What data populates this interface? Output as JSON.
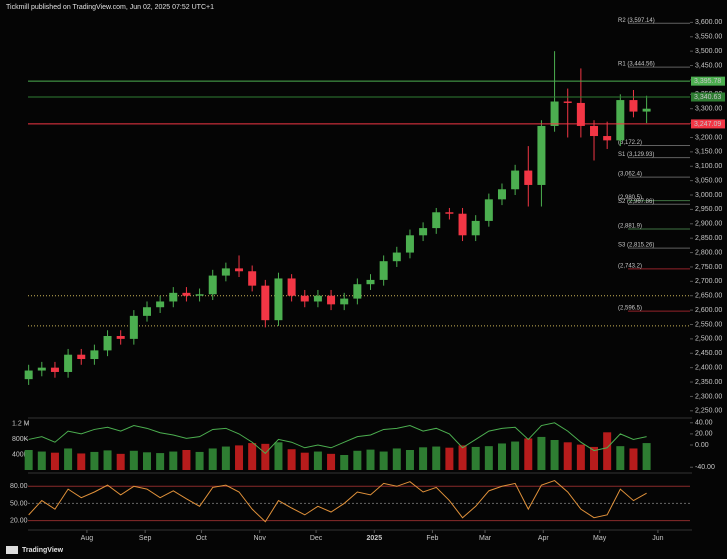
{
  "chart_data": {
    "type": "candlestick",
    "title": "Tickmill published on TradingView.com, Jun 02, 2025 07:52 UTC+1",
    "footer": "TradingView",
    "xlim": [
      -0.05,
      50.3
    ],
    "xticks": [
      {
        "value": 4.43,
        "label": "Aug"
      },
      {
        "value": 8.86,
        "label": "Sep"
      },
      {
        "value": 13.14,
        "label": "Oct"
      },
      {
        "value": 17.57,
        "label": "Nov"
      },
      {
        "value": 21.86,
        "label": "Dec"
      },
      {
        "value": 26.29,
        "label": "2025"
      },
      {
        "value": 30.71,
        "label": "Feb"
      },
      {
        "value": 34.71,
        "label": "Mar"
      },
      {
        "value": 39.14,
        "label": "Apr"
      },
      {
        "value": 43.43,
        "label": "May"
      },
      {
        "value": 47.86,
        "label": "Jun"
      }
    ],
    "ylim": [
      2225,
      3650
    ],
    "yticks": [
      {
        "value": 2250,
        "label": "2,250.00"
      },
      {
        "value": 2300,
        "label": "2,300.00"
      },
      {
        "value": 2350,
        "label": "2,350.00"
      },
      {
        "value": 2400,
        "label": "2,400.00"
      },
      {
        "value": 2450,
        "label": "2,450.00"
      },
      {
        "value": 2500,
        "label": "2,500.00"
      },
      {
        "value": 2550,
        "label": "2,550.00"
      },
      {
        "value": 2600,
        "label": "2,600.00"
      },
      {
        "value": 2650,
        "label": "2,650.00"
      },
      {
        "value": 2700,
        "label": "2,700.00"
      },
      {
        "value": 2750,
        "label": "2,750.00"
      },
      {
        "value": 2800,
        "label": "2,800.00"
      },
      {
        "value": 2850,
        "label": "2,850.00"
      },
      {
        "value": 2900,
        "label": "2,900.00"
      },
      {
        "value": 2950,
        "label": "2,950.00"
      },
      {
        "value": 3000,
        "label": "3,000.00"
      },
      {
        "value": 3050,
        "label": "3,050.00"
      },
      {
        "value": 3100,
        "label": "3,100.00"
      },
      {
        "value": 3150,
        "label": "3,150.00"
      },
      {
        "value": 3200,
        "label": "3,200.00"
      },
      {
        "value": 3250,
        "label": "3,250.00"
      },
      {
        "value": 3300,
        "label": "3,300.00"
      },
      {
        "value": 3350,
        "label": "3,350.00"
      },
      {
        "value": 3400,
        "label": "3,400.00"
      },
      {
        "value": 3450,
        "label": "3,450.00"
      },
      {
        "value": 3500,
        "label": "3,500.00"
      },
      {
        "value": 3550,
        "label": "3,550.00"
      },
      {
        "value": 3600,
        "label": "3,600.00"
      }
    ],
    "up_color": "#4caf50",
    "down_color": "#f23645",
    "open": [
      2360,
      2390,
      2400,
      2385,
      2445,
      2430,
      2460,
      2510,
      2500,
      2580,
      2610,
      2630,
      2660,
      2650,
      2655,
      2720,
      2745,
      2735,
      2685,
      2565,
      2710,
      2650,
      2630,
      2650,
      2620,
      2640,
      2690,
      2705,
      2770,
      2800,
      2860,
      2885,
      2940,
      2935,
      2860,
      2910,
      2985,
      3020,
      3085,
      3035,
      3240,
      3325,
      3320,
      3240,
      3205,
      3190,
      3330,
      3290
    ],
    "high": [
      2410,
      2420,
      2420,
      2465,
      2465,
      2480,
      2530,
      2530,
      2600,
      2630,
      2650,
      2680,
      2680,
      2675,
      2740,
      2765,
      2790,
      2755,
      2705,
      2730,
      2725,
      2670,
      2670,
      2670,
      2660,
      2710,
      2725,
      2790,
      2820,
      2880,
      2905,
      2955,
      2955,
      2955,
      2930,
      3005,
      3040,
      3105,
      3170,
      3260,
      3500,
      3370,
      3440,
      3260,
      3255,
      3350,
      3365,
      3345
    ],
    "low": [
      2340,
      2370,
      2365,
      2365,
      2410,
      2410,
      2440,
      2480,
      2480,
      2560,
      2590,
      2610,
      2630,
      2630,
      2635,
      2700,
      2715,
      2665,
      2540,
      2545,
      2630,
      2610,
      2610,
      2600,
      2600,
      2620,
      2670,
      2685,
      2750,
      2780,
      2840,
      2865,
      2915,
      2840,
      2840,
      2890,
      2965,
      3000,
      2960,
      2960,
      3220,
      3200,
      3200,
      3120,
      3160,
      3170,
      3270,
      3250
    ],
    "close": [
      2390,
      2400,
      2385,
      2445,
      2430,
      2460,
      2510,
      2500,
      2580,
      2610,
      2630,
      2660,
      2650,
      2655,
      2720,
      2745,
      2735,
      2685,
      2565,
      2710,
      2650,
      2630,
      2650,
      2620,
      2640,
      2690,
      2705,
      2770,
      2800,
      2860,
      2885,
      2940,
      2935,
      2860,
      2910,
      2985,
      3020,
      3085,
      3035,
      3240,
      3325,
      3320,
      3240,
      3205,
      3190,
      3330,
      3290,
      3300
    ],
    "levels": [
      {
        "value": 3395.78,
        "label": "3,395.78",
        "color": "#4caf50"
      },
      {
        "value": 3340.63,
        "label": "3,340.63",
        "color": "#2e7d32"
      },
      {
        "value": 3247.09,
        "label": "3,247.09",
        "color": "#f23645"
      }
    ],
    "dotted_levels": [
      2650,
      2545
    ],
    "dotted_color": "#c9b458",
    "pivots": [
      {
        "label": "R2 (3,597.14)",
        "value": 3597.14,
        "color": "#9e9e9e"
      },
      {
        "label": "R1 (3,444.56)",
        "value": 3444.56,
        "color": "#9e9e9e"
      },
      {
        "label": "(3,172.2)",
        "value": 3172.2,
        "color": "#9e9e9e"
      },
      {
        "label": "S1 (3,129.93)",
        "value": 3129.93,
        "color": "#9e9e9e"
      },
      {
        "label": "(3,062.4)",
        "value": 3062.4,
        "color": "#9e9e9e"
      },
      {
        "label": "(2,980.5)",
        "value": 2980.5,
        "color": "#66bb6a"
      },
      {
        "label": "S2 (2,967.86)",
        "value": 2967.86,
        "color": "#9e9e9e"
      },
      {
        "label": "(2,881.9)",
        "value": 2881.9,
        "color": "#66bb6a"
      },
      {
        "label": "S3 (2,815.26)",
        "value": 2815.26,
        "color": "#9e9e9e"
      },
      {
        "label": "(2,743.2)",
        "value": 2743.2,
        "color": "#f23645"
      },
      {
        "label": "(2,596.5)",
        "value": 2596.5,
        "color": "#f23645"
      }
    ],
    "volume": {
      "values": [
        520000,
        480000,
        450000,
        560000,
        430000,
        470000,
        510000,
        420000,
        500000,
        460000,
        440000,
        480000,
        520000,
        470000,
        560000,
        610000,
        640000,
        700000,
        680000,
        720000,
        540000,
        450000,
        480000,
        420000,
        390000,
        500000,
        530000,
        480000,
        560000,
        520000,
        590000,
        610000,
        580000,
        640000,
        600000,
        620000,
        690000,
        740000,
        820000,
        860000,
        780000,
        720000,
        660000,
        600000,
        980000,
        620000,
        560000,
        700000
      ],
      "ylim": [
        0,
        1300000
      ],
      "yticks": [
        {
          "value": 1200000,
          "label": "1.2 M"
        },
        {
          "value": 800000,
          "label": "800K"
        },
        {
          "value": 400000,
          "label": "400K"
        }
      ],
      "momentum": {
        "color": "#4caf50",
        "values": [
          10,
          15,
          5,
          25,
          20,
          28,
          32,
          25,
          35,
          30,
          22,
          18,
          12,
          15,
          28,
          30,
          20,
          5,
          -15,
          10,
          5,
          -5,
          0,
          -5,
          5,
          15,
          18,
          28,
          30,
          35,
          25,
          30,
          20,
          -5,
          10,
          25,
          30,
          32,
          10,
          35,
          40,
          25,
          5,
          -10,
          -5,
          20,
          10,
          15
        ]
      },
      "y2lim": [
        -45,
        45
      ],
      "y2ticks": [
        {
          "value": 40,
          "label": "40.00"
        },
        {
          "value": 20,
          "label": "20.00"
        },
        {
          "value": 0,
          "label": "0.00"
        },
        {
          "value": -40,
          "label": "-40.00"
        }
      ]
    },
    "oscillator": {
      "color": "#e0913a",
      "values": [
        30,
        55,
        40,
        75,
        60,
        70,
        82,
        65,
        80,
        75,
        60,
        72,
        58,
        45,
        78,
        82,
        70,
        40,
        18,
        55,
        42,
        30,
        45,
        35,
        50,
        70,
        65,
        85,
        80,
        88,
        70,
        78,
        55,
        25,
        45,
        72,
        80,
        85,
        40,
        82,
        90,
        70,
        40,
        25,
        30,
        75,
        55,
        68
      ],
      "ylim": [
        7,
        98
      ],
      "yticks": [
        {
          "value": 80,
          "label": "80.00"
        },
        {
          "value": 50,
          "label": "50.00"
        },
        {
          "value": 20,
          "label": "20.00"
        }
      ]
    }
  }
}
